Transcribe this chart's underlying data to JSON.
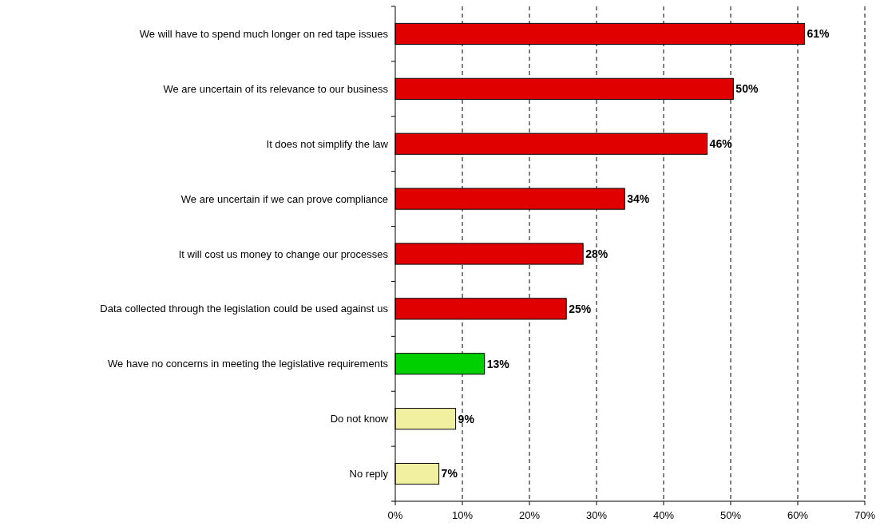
{
  "chart_data": {
    "type": "bar",
    "orientation": "horizontal",
    "categories": [
      "We will have to spend much longer on red tape issues",
      "We are uncertain of its relevance to our business",
      "It does not simplify the law",
      "We are uncertain if we can prove compliance",
      "It will cost us money to change our processes",
      "Data collected through the legislation could be used against us",
      "We have no concerns in meeting the legislative requirements",
      "Do not know",
      "No reply"
    ],
    "values": [
      61,
      50.4,
      46.5,
      34.2,
      28,
      25.5,
      13.3,
      9,
      6.5
    ],
    "value_labels": [
      "61%",
      "50%",
      "46%",
      "34%",
      "28%",
      "25%",
      "13%",
      "9%",
      "7%"
    ],
    "colors": [
      "#e00000",
      "#e00000",
      "#e00000",
      "#e00000",
      "#e00000",
      "#e00000",
      "#00d000",
      "#f0f0a0",
      "#f0f0a0"
    ],
    "xlim": [
      0,
      70
    ],
    "xticks": [
      {
        "value": 0,
        "label": "0%"
      },
      {
        "value": 10,
        "label": "10%"
      },
      {
        "value": 20,
        "label": "20%"
      },
      {
        "value": 30,
        "label": "30%"
      },
      {
        "value": 40,
        "label": "40%"
      },
      {
        "value": 50,
        "label": "50%"
      },
      {
        "value": 60,
        "label": "60%"
      },
      {
        "value": 70,
        "label": "70%"
      }
    ],
    "grid": "x"
  }
}
